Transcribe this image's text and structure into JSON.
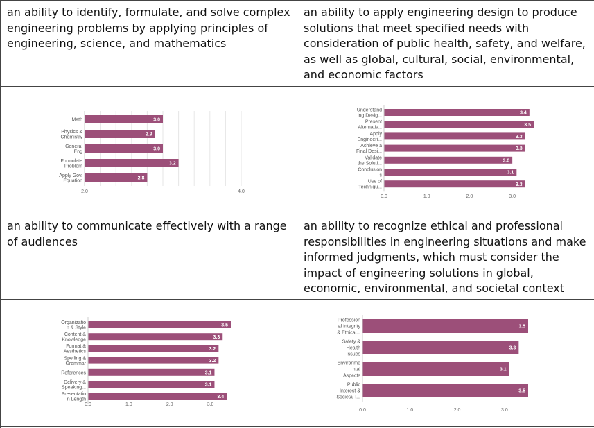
{
  "cells": {
    "c1": "an ability to identify, formulate, and solve complex engineering problems by applying principles of engineering, science, and mathematics",
    "c2": "an ability to apply engineering design to produce solutions that meet specified needs with consideration of public health, safety, and welfare, as well as global, cultural, social, environmental, and economic factors",
    "c3": "an ability to communicate effectively with a range of audiences",
    "c4": "an ability to recognize ethical and professional responsibilities in engineering situations and make informed judgments, which must consider the impact of engineering solutions in global, economic, environmental, and societal context"
  },
  "chart_data": [
    {
      "type": "bar",
      "orientation": "horizontal",
      "categories": [
        [
          "Math"
        ],
        [
          "Physics &",
          "Chemistry"
        ],
        [
          "General",
          "Eng"
        ],
        [
          "Formulate",
          "Problem"
        ],
        [
          "Apply Gov.",
          "Equation"
        ]
      ],
      "values": [
        3.0,
        2.9,
        3.0,
        3.2,
        2.8
      ],
      "value_labels": [
        "3.0",
        "2.9",
        "3.0",
        "3.2",
        "2.8"
      ],
      "xlim": [
        2.0,
        4.0
      ],
      "ticks": [
        2.0,
        4.0
      ],
      "tick_labels": [
        "2.0",
        "4.0"
      ],
      "grid": true,
      "color": "#9c4f79"
    },
    {
      "type": "bar",
      "orientation": "horizontal",
      "categories": [
        [
          "Understand",
          "ing Desig..."
        ],
        [
          "Present",
          "Alternativ..."
        ],
        [
          "Apply",
          "Engineeri..."
        ],
        [
          "Achieve a",
          "Final Desi..."
        ],
        [
          "Validate",
          "the Soluti..."
        ],
        [
          "Conclusion",
          "s"
        ],
        [
          "Use of",
          "Techniqu..."
        ]
      ],
      "values": [
        3.4,
        3.5,
        3.3,
        3.3,
        3.0,
        3.1,
        3.3
      ],
      "value_labels": [
        "3.4",
        "3.5",
        "3.3",
        "3.3",
        "3.0",
        "3.1",
        "3.3"
      ],
      "xlim": [
        0,
        3.5
      ],
      "ticks": [
        0,
        1,
        2,
        3
      ],
      "tick_labels": [
        "0.0",
        "1.0",
        "2.0",
        "3.0"
      ],
      "grid": false,
      "color": "#9c4f79"
    },
    {
      "type": "bar",
      "orientation": "horizontal",
      "categories": [
        [
          "Organizatio",
          "n & Style"
        ],
        [
          "Content &",
          "Knowledge"
        ],
        [
          "Format &",
          "Aesthetics"
        ],
        [
          "Spelling &",
          "Grammar"
        ],
        [
          "References"
        ],
        [
          "Delivery &",
          "Speaking..."
        ],
        [
          "Presentatio",
          "n Length"
        ]
      ],
      "values": [
        3.5,
        3.3,
        3.2,
        3.2,
        3.1,
        3.1,
        3.4
      ],
      "value_labels": [
        "3.5",
        "3.3",
        "3.2",
        "3.2",
        "3.1",
        "3.1",
        "3.4"
      ],
      "xlim": [
        0,
        3.5
      ],
      "ticks": [
        0,
        1,
        2,
        3
      ],
      "tick_labels": [
        "0.0",
        "1.0",
        "2.0",
        "3.0"
      ],
      "grid": false,
      "color": "#9c4f79"
    },
    {
      "type": "bar",
      "orientation": "horizontal",
      "categories": [
        [
          "Profession",
          "al Integrity",
          "& Ethical..."
        ],
        [
          "Safety &",
          "Health",
          "Issues"
        ],
        [
          "Environme",
          "ntal",
          "Aspects"
        ],
        [
          "Public",
          "Interest &",
          "Societal I..."
        ]
      ],
      "values": [
        3.5,
        3.3,
        3.1,
        3.5
      ],
      "value_labels": [
        "3.5",
        "3.3",
        "3.1",
        "3.5"
      ],
      "xlim": [
        0,
        3.5
      ],
      "ticks": [
        0,
        1,
        2,
        3
      ],
      "tick_labels": [
        "0.0",
        "1.0",
        "2.0",
        "3.0"
      ],
      "grid": false,
      "color": "#9c4f79"
    }
  ]
}
